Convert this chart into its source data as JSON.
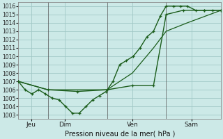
{
  "title": "Pression niveau de la mer( hPa )",
  "bg_color": "#cce9e7",
  "grid_color": "#a0c8c6",
  "line_color": "#1a5c1a",
  "ylim": [
    1002.5,
    1016.5
  ],
  "yticks": [
    1003,
    1004,
    1005,
    1006,
    1007,
    1008,
    1009,
    1010,
    1011,
    1012,
    1013,
    1014,
    1015,
    1016
  ],
  "xlim": [
    0,
    240
  ],
  "day_positions": [
    15,
    55,
    135,
    205
  ],
  "day_labels": [
    "Jeu",
    "Dim",
    "Ven",
    "Sam"
  ],
  "vlines": [
    35,
    105,
    175
  ],
  "line1_x": [
    0,
    8,
    16,
    24,
    32,
    40,
    48,
    56,
    64,
    72,
    80,
    88,
    96,
    104,
    112,
    120,
    128,
    136,
    144,
    152,
    160,
    168,
    175,
    184,
    192,
    200,
    210,
    220,
    230,
    240
  ],
  "line1_y": [
    1007,
    1006,
    1005.5,
    1006,
    1005.5,
    1005,
    1004.8,
    1004,
    1003.2,
    1003.2,
    1004,
    1004.8,
    1005.3,
    1005.8,
    1007,
    1009,
    1009.5,
    1010,
    1011,
    1012.3,
    1013,
    1014.8,
    1016,
    1016,
    1016,
    1016,
    1015.5,
    1015.5,
    1015.5,
    1015.5
  ],
  "line2_x": [
    0,
    35,
    70,
    105,
    135,
    160,
    175,
    195,
    220,
    240
  ],
  "line2_y": [
    1007,
    1006,
    1005.8,
    1006,
    1006.5,
    1006.5,
    1015,
    1015.5,
    1015.5,
    1015.5
  ],
  "line3_x": [
    0,
    35,
    70,
    105,
    135,
    160,
    175,
    200,
    240
  ],
  "line3_y": [
    1007,
    1006,
    1006,
    1006,
    1008,
    1011,
    1013,
    1014,
    1015.5
  ]
}
